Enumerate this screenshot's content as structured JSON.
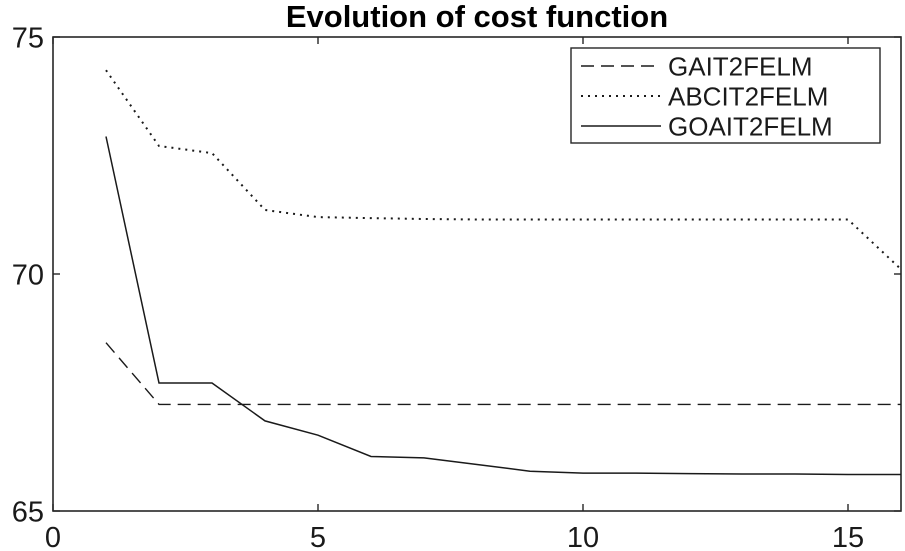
{
  "figure": {
    "background": "#ffffff",
    "axis_color": "#262626",
    "text_color": "#1a1a1a",
    "title_color": "#000000"
  },
  "chart_data": {
    "type": "line",
    "title": "Evolution of cost function",
    "xlabel": "",
    "ylabel": "",
    "xlim": [
      0,
      16
    ],
    "ylim": [
      65,
      75
    ],
    "xticks": [
      0,
      5,
      10,
      15
    ],
    "yticks": [
      65,
      70,
      75
    ],
    "grid": false,
    "legend_position": "top-right-inside",
    "x": [
      1,
      2,
      3,
      4,
      5,
      6,
      7,
      8,
      9,
      10,
      11,
      12,
      13,
      14,
      15,
      16
    ],
    "series": [
      {
        "name": "GAIT2FELM",
        "style": "dashed",
        "color": "#1a1a1a",
        "values": [
          68.55,
          67.25,
          67.25,
          67.25,
          67.25,
          67.25,
          67.25,
          67.25,
          67.25,
          67.25,
          67.25,
          67.25,
          67.25,
          67.25,
          67.25,
          67.25
        ]
      },
      {
        "name": "ABCIT2FELM",
        "style": "dotted",
        "color": "#1a1a1a",
        "values": [
          74.3,
          72.7,
          72.55,
          71.35,
          71.2,
          71.18,
          71.16,
          71.15,
          71.15,
          71.15,
          71.15,
          71.15,
          71.15,
          71.15,
          71.15,
          70.1
        ]
      },
      {
        "name": "GOAIT2FELM",
        "style": "solid",
        "color": "#1a1a1a",
        "values": [
          72.9,
          67.7,
          67.7,
          66.9,
          66.6,
          66.15,
          66.12,
          65.98,
          65.84,
          65.8,
          65.8,
          65.79,
          65.78,
          65.78,
          65.77,
          65.77
        ]
      }
    ]
  }
}
